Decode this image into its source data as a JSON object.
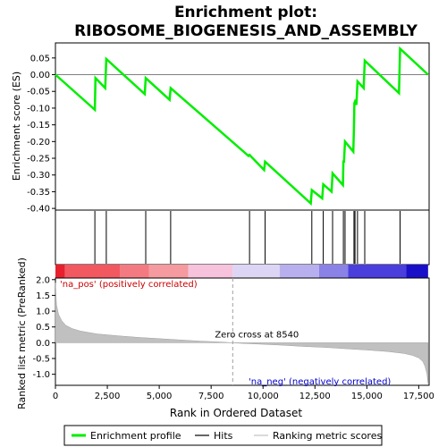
{
  "chart_data": {
    "type": "line",
    "title_line1": "Enrichment plot:",
    "title_line2": "RIBOSOME_BIOGENESIS_AND_ASSEMBLY",
    "es_ylabel": "Enrichment score (ES)",
    "metric_ylabel": "Ranked list metric (PreRanked)",
    "xlabel": "Rank in Ordered Dataset",
    "xlim": [
      0,
      18000
    ],
    "es_ylim": [
      -0.405,
      0.095
    ],
    "metric_ylim": [
      -1.35,
      2.05
    ],
    "x_ticks": [
      {
        "v": 0,
        "label": "0"
      },
      {
        "v": 2500,
        "label": "2,500"
      },
      {
        "v": 5000,
        "label": "5,000"
      },
      {
        "v": 7500,
        "label": "7,500"
      },
      {
        "v": 10000,
        "label": "10,000"
      },
      {
        "v": 12500,
        "label": "12,500"
      },
      {
        "v": 15000,
        "label": "15,000"
      },
      {
        "v": 17500,
        "label": "17,500"
      }
    ],
    "es_ticks": [
      {
        "v": 0.05,
        "label": "0.05"
      },
      {
        "v": 0.0,
        "label": "0.00"
      },
      {
        "v": -0.05,
        "label": "-0.05"
      },
      {
        "v": -0.1,
        "label": "-0.10"
      },
      {
        "v": -0.15,
        "label": "-0.15"
      },
      {
        "v": -0.2,
        "label": "-0.20"
      },
      {
        "v": -0.25,
        "label": "-0.25"
      },
      {
        "v": -0.3,
        "label": "-0.30"
      },
      {
        "v": -0.35,
        "label": "-0.35"
      },
      {
        "v": -0.4,
        "label": "-0.40"
      }
    ],
    "metric_ticks": [
      {
        "v": 2.0,
        "label": "2.0"
      },
      {
        "v": 1.5,
        "label": "1.5"
      },
      {
        "v": 1.0,
        "label": "1.0"
      },
      {
        "v": 0.5,
        "label": "0.5"
      },
      {
        "v": 0.0,
        "label": "0.0"
      },
      {
        "v": -0.5,
        "label": "-0.5"
      },
      {
        "v": -1.0,
        "label": "-1.0"
      }
    ],
    "enrichment_profile": {
      "x": [
        0,
        1900,
        1930,
        2400,
        2450,
        4300,
        4350,
        5500,
        5550,
        9300,
        9350,
        10050,
        10100,
        12300,
        12350,
        12850,
        12900,
        13300,
        13350,
        13850,
        13870,
        13900,
        13950,
        14350,
        14380,
        14400,
        14430,
        14500,
        14550,
        14850,
        14900,
        16550,
        16600,
        17950
      ],
      "y": [
        0.0,
        -0.105,
        -0.01,
        -0.04,
        0.047,
        -0.058,
        -0.01,
        -0.075,
        -0.04,
        -0.243,
        -0.24,
        -0.285,
        -0.26,
        -0.385,
        -0.345,
        -0.37,
        -0.328,
        -0.35,
        -0.295,
        -0.33,
        -0.26,
        -0.26,
        -0.2,
        -0.23,
        -0.16,
        -0.085,
        -0.08,
        -0.09,
        -0.02,
        -0.04,
        0.042,
        -0.055,
        0.078,
        0.0
      ]
    },
    "hits": [
      1900,
      2450,
      4350,
      5550,
      9350,
      10100,
      12350,
      12900,
      13350,
      13870,
      13950,
      14380,
      14430,
      14550,
      14900,
      16600
    ],
    "ranking_metric": {
      "x": [
        0,
        50,
        150,
        300,
        500,
        800,
        1200,
        2000,
        3000,
        4000,
        5000,
        6000,
        7000,
        8000,
        8540,
        9000,
        10000,
        11000,
        12000,
        13000,
        14000,
        15000,
        16000,
        16800,
        17200,
        17500,
        17700,
        17800,
        17900,
        17950
      ],
      "y": [
        1.9,
        1.2,
        0.9,
        0.7,
        0.55,
        0.45,
        0.37,
        0.28,
        0.22,
        0.17,
        0.13,
        0.09,
        0.05,
        0.02,
        0.0,
        -0.02,
        -0.05,
        -0.08,
        -0.12,
        -0.15,
        -0.19,
        -0.23,
        -0.28,
        -0.34,
        -0.4,
        -0.48,
        -0.6,
        -0.75,
        -1.0,
        -1.3
      ]
    },
    "zero_cross_label": "Zero cross at 8540",
    "zero_cross": 8540,
    "pos_label": "'na_pos' (positively correlated)",
    "neg_label": "'na_neg' (negatively correlated)",
    "color_bar": [
      {
        "x0": 0,
        "x1": 450,
        "color": "#e8202e"
      },
      {
        "x0": 450,
        "x1": 3100,
        "color": "#f25860"
      },
      {
        "x0": 3100,
        "x1": 4500,
        "color": "#f47a82"
      },
      {
        "x0": 4500,
        "x1": 6400,
        "color": "#f59a9e"
      },
      {
        "x0": 6400,
        "x1": 8540,
        "color": "#f6c2dc"
      },
      {
        "x0": 8540,
        "x1": 10800,
        "color": "#dcd6f4"
      },
      {
        "x0": 10800,
        "x1": 12700,
        "color": "#b8b0ee"
      },
      {
        "x0": 12700,
        "x1": 14100,
        "color": "#8a82e6"
      },
      {
        "x0": 14100,
        "x1": 16900,
        "color": "#4a3edc"
      },
      {
        "x0": 16900,
        "x1": 17950,
        "color": "#1a0fc8"
      }
    ],
    "legend": [
      {
        "name": "Enrichment profile",
        "color": "#00ee00",
        "kind": "thick"
      },
      {
        "name": "Hits",
        "color": "#000000",
        "kind": "thin"
      },
      {
        "name": "Ranking metric scores",
        "color": "#c0c0c0",
        "kind": "thin"
      }
    ],
    "colors": {
      "profile": "#00ee00",
      "metric_fill": "#c0c0c0",
      "pos_text": "#cc0000",
      "neg_text": "#0000cc",
      "zero_line": "#808080"
    }
  }
}
